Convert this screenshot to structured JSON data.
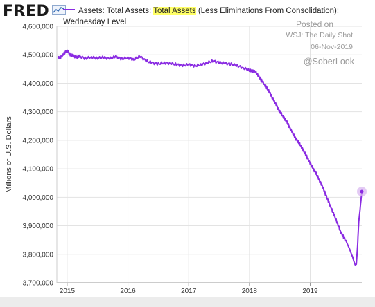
{
  "header": {
    "logo_text": "FRED",
    "logo_icon": "sparkline-chart-icon"
  },
  "legend": {
    "prefix": "Assets: Total Assets: ",
    "highlight": "Total Assets",
    "suffix": " (Less Eliminations From Consolidation): Wednesday Level",
    "color": "#8a2be2"
  },
  "watermark": {
    "posted": "Posted on",
    "source": "WSJ: The Daily Shot",
    "date": "06-Nov-2019",
    "handle": "@SoberLook"
  },
  "chart_data": {
    "type": "line",
    "ylabel": "Millions of U.S. Dollars",
    "ylim": [
      3700000,
      4600000
    ],
    "yticks": [
      {
        "value": 3700000,
        "label": "3,700,000"
      },
      {
        "value": 3800000,
        "label": "3,800,000"
      },
      {
        "value": 3900000,
        "label": "3,900,000"
      },
      {
        "value": 4000000,
        "label": "4,000,000"
      },
      {
        "value": 4100000,
        "label": "4,100,000"
      },
      {
        "value": 4200000,
        "label": "4,200,000"
      },
      {
        "value": 4300000,
        "label": "4,300,000"
      },
      {
        "value": 4400000,
        "label": "4,400,000"
      },
      {
        "value": 4500000,
        "label": "4,500,000"
      },
      {
        "value": 4600000,
        "label": "4,600,000"
      }
    ],
    "xlim": [
      2014.83,
      2019.85
    ],
    "xticks": [
      {
        "value": 2015,
        "label": "2015"
      },
      {
        "value": 2016,
        "label": "2016"
      },
      {
        "value": 2017,
        "label": "2017"
      },
      {
        "value": 2018,
        "label": "2018"
      },
      {
        "value": 2019,
        "label": "2019"
      }
    ],
    "grid": true,
    "series": [
      {
        "color": "#8a2be2",
        "x": [
          2014.85,
          2014.9,
          2014.95,
          2015.0,
          2015.05,
          2015.1,
          2015.15,
          2015.2,
          2015.3,
          2015.4,
          2015.5,
          2015.6,
          2015.7,
          2015.8,
          2015.9,
          2016.0,
          2016.1,
          2016.2,
          2016.3,
          2016.4,
          2016.5,
          2016.6,
          2016.7,
          2016.8,
          2016.9,
          2017.0,
          2017.1,
          2017.2,
          2017.3,
          2017.4,
          2017.5,
          2017.6,
          2017.7,
          2017.8,
          2017.9,
          2018.0,
          2018.05,
          2018.1,
          2018.15,
          2018.2,
          2018.25,
          2018.3,
          2018.35,
          2018.4,
          2018.45,
          2018.5,
          2018.55,
          2018.6,
          2018.65,
          2018.7,
          2018.75,
          2018.8,
          2018.85,
          2018.9,
          2018.95,
          2019.0,
          2019.05,
          2019.1,
          2019.15,
          2019.2,
          2019.25,
          2019.3,
          2019.35,
          2019.4,
          2019.45,
          2019.5,
          2019.55,
          2019.6,
          2019.65,
          2019.68,
          2019.7,
          2019.72,
          2019.74,
          2019.76,
          2019.78,
          2019.8,
          2019.82
        ],
        "values": [
          4489000,
          4492000,
          4505000,
          4516000,
          4500000,
          4497000,
          4490000,
          4495000,
          4487000,
          4492000,
          4488000,
          4491000,
          4486000,
          4494000,
          4485000,
          4490000,
          4483000,
          4495000,
          4478000,
          4472000,
          4468000,
          4472000,
          4470000,
          4466000,
          4462000,
          4466000,
          4461000,
          4465000,
          4472000,
          4478000,
          4473000,
          4470000,
          4467000,
          4462000,
          4454000,
          4446000,
          4443000,
          4440000,
          4425000,
          4410000,
          4395000,
          4380000,
          4360000,
          4340000,
          4320000,
          4300000,
          4285000,
          4270000,
          4250000,
          4230000,
          4210000,
          4195000,
          4180000,
          4160000,
          4140000,
          4118000,
          4100000,
          4083000,
          4060000,
          4040000,
          4012000,
          3985000,
          3960000,
          3935000,
          3908000,
          3880000,
          3860000,
          3842000,
          3818000,
          3800000,
          3790000,
          3775000,
          3763000,
          3765000,
          3830000,
          3915000,
          3955000
        ]
      }
    ],
    "last_point": {
      "x": 2019.85,
      "value": 4020000
    }
  }
}
